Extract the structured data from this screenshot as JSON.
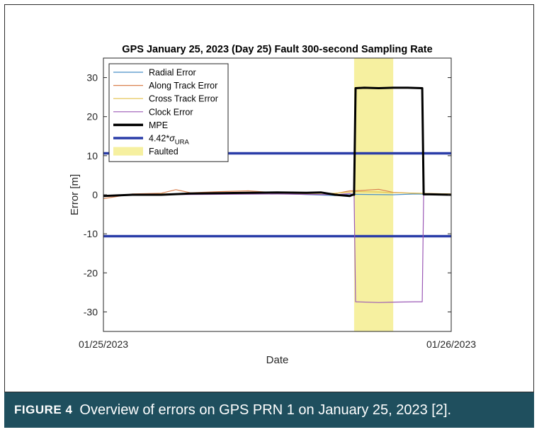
{
  "figure": {
    "caption_label": "FIGURE 4",
    "caption_text": "Overview of errors on GPS PRN 1 on January 25, 2023 [2].",
    "caption_bg": "#1f4f5e"
  },
  "chart_data": {
    "type": "line",
    "title": "GPS January 25, 2023 (Day 25) Fault 300-second Sampling Rate",
    "xlabel": "Date",
    "ylabel": "Error [m]",
    "xlim": [
      "01/25/2023 00:00",
      "01/26/2023 00:00"
    ],
    "x_tick_labels": [
      "01/25/2023",
      "01/26/2023"
    ],
    "ylim": [
      -35,
      35
    ],
    "y_ticks": [
      30,
      20,
      10,
      0,
      -10,
      -20,
      -30
    ],
    "y_tick_labels": [
      "30",
      "20",
      "10",
      "0",
      "-10",
      "-20",
      "-30"
    ],
    "grid": false,
    "legend_position": "top-left",
    "x_units": "hours since 01/25/2023 00:00",
    "legend": [
      {
        "label": "Radial Error",
        "color": "#4a90c8",
        "kind": "line"
      },
      {
        "label": "Along Track Error",
        "color": "#d9814f",
        "kind": "line"
      },
      {
        "label": "Cross Track Error",
        "color": "#e3c14a",
        "kind": "line"
      },
      {
        "label": "Clock Error",
        "color": "#9b59b6",
        "kind": "line"
      },
      {
        "label": "MPE",
        "color": "#000000",
        "kind": "thick-line"
      },
      {
        "label": "4.42*σURA",
        "color": "#2a3da8",
        "kind": "thick-line"
      },
      {
        "label": "Faulted",
        "color": "#f6f0a0",
        "kind": "patch"
      }
    ],
    "fault_interval_hours": [
      17.3,
      20.0
    ],
    "ura_bound": 10.6,
    "series": [
      {
        "name": "Radial Error",
        "color": "#4a90c8",
        "x": [
          0,
          4,
          8,
          12,
          16,
          17.0,
          17.3,
          17.4,
          20.0,
          21.5,
          24
        ],
        "y": [
          -0.3,
          0.1,
          0.2,
          0.3,
          -0.2,
          0.2,
          0.0,
          0.1,
          0.0,
          0.2,
          0.0
        ]
      },
      {
        "name": "Along Track Error",
        "color": "#d9814f",
        "x": [
          0,
          2,
          4,
          5,
          6,
          8,
          10,
          12,
          14,
          16,
          17.0,
          17.4,
          19.0,
          20.0,
          21.5,
          24
        ],
        "y": [
          -1.0,
          0.2,
          0.4,
          1.3,
          0.5,
          0.8,
          1.0,
          0.5,
          0.6,
          0.3,
          1.0,
          1.0,
          1.4,
          0.6,
          0.4,
          0.2
        ]
      },
      {
        "name": "Cross Track Error",
        "color": "#e3c14a",
        "x": [
          0,
          4,
          8,
          12,
          16,
          17.4,
          19.0,
          20.0,
          24
        ],
        "y": [
          -0.2,
          0.2,
          0.3,
          0.2,
          0.4,
          0.8,
          0.7,
          0.5,
          0.2
        ]
      },
      {
        "name": "Clock Error",
        "color": "#9b59b6",
        "x": [
          0,
          4,
          8,
          12,
          16,
          17.0,
          17.3,
          17.4,
          19.0,
          20.0,
          21.5,
          22.0,
          22.1,
          24
        ],
        "y": [
          -0.2,
          0.0,
          0.1,
          0.2,
          0.0,
          0.3,
          0.0,
          -27.4,
          -27.6,
          -27.5,
          -27.4,
          -27.4,
          0.0,
          0.0
        ]
      },
      {
        "name": "MPE",
        "color": "#000000",
        "x": [
          0,
          2,
          4,
          6,
          8,
          10,
          12,
          14,
          15,
          16,
          17.0,
          17.2,
          17.3,
          17.4,
          18,
          19,
          20,
          21,
          22.0,
          22.1,
          22.5,
          24
        ],
        "y": [
          -0.3,
          0.0,
          0.0,
          0.3,
          0.4,
          0.5,
          0.6,
          0.5,
          0.6,
          0.0,
          -0.3,
          0.0,
          0.0,
          27.3,
          27.4,
          27.3,
          27.4,
          27.4,
          27.3,
          0.1,
          0.1,
          0.0
        ]
      }
    ]
  }
}
